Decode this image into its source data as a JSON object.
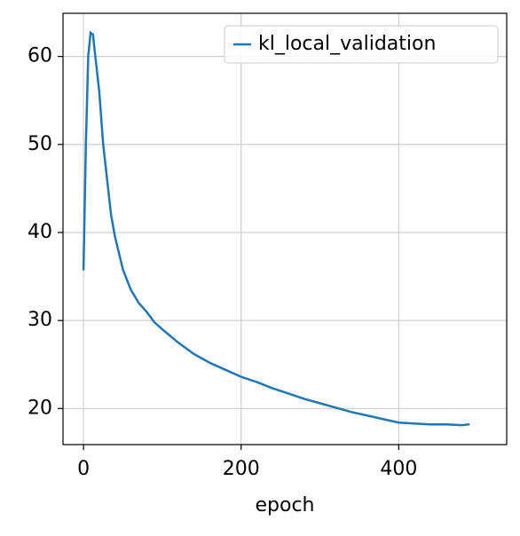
{
  "chart_data": {
    "type": "line",
    "x_label": "epoch",
    "x": [
      0,
      3,
      6,
      9,
      12,
      15,
      20,
      25,
      30,
      35,
      40,
      50,
      60,
      70,
      80,
      90,
      100,
      120,
      140,
      160,
      180,
      200,
      220,
      240,
      260,
      280,
      300,
      320,
      340,
      360,
      380,
      400,
      420,
      440,
      460,
      480,
      490
    ],
    "series": [
      {
        "name": "kl_local_validation",
        "color": "#1f77b4",
        "values": [
          35.7,
          50,
          60,
          62.7,
          62.5,
          60,
          56,
          50,
          46,
          42,
          39.5,
          35.8,
          33.5,
          32,
          31,
          29.8,
          29,
          27.5,
          26.2,
          25.2,
          24.4,
          23.6,
          23,
          22.3,
          21.7,
          21.1,
          20.6,
          20.1,
          19.6,
          19.2,
          18.8,
          18.4,
          18.3,
          18.2,
          18.2,
          18.1,
          18.2
        ]
      }
    ],
    "xlim": [
      -26,
      537
    ],
    "ylim": [
      15.9,
      64.9
    ],
    "xticks": [
      0,
      200,
      400
    ],
    "yticks": [
      20,
      30,
      40,
      50,
      60
    ],
    "grid": true,
    "legend": "upper right"
  }
}
